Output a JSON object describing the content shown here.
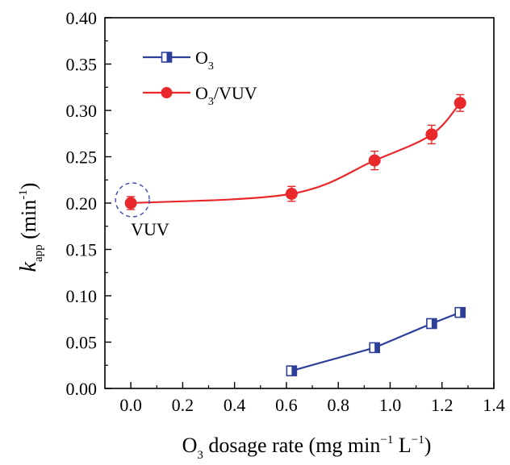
{
  "chart_data": {
    "type": "line",
    "xlabel": {
      "base": "O",
      "sub": "3",
      "rest": " dosage rate (mg min",
      "sup1": "−1",
      "mid": " L",
      "sup2": "−1",
      "end": ")"
    },
    "ylabel": {
      "italic": "k",
      "sub": "app",
      "rest": " (min",
      "sup": "-1",
      "end": ")"
    },
    "xlim": [
      -0.1,
      1.4
    ],
    "ylim": [
      0.0,
      0.4
    ],
    "xticks": [
      "0.0",
      "0.2",
      "0.4",
      "0.6",
      "0.8",
      "1.0",
      "1.2",
      "1.4"
    ],
    "yticks": [
      "0.00",
      "0.05",
      "0.10",
      "0.15",
      "0.20",
      "0.25",
      "0.30",
      "0.35",
      "0.40"
    ],
    "legend_position": "top-left",
    "series": [
      {
        "name": {
          "base": "O",
          "sub": "3",
          "rest": ""
        },
        "color": "#2e3f9a",
        "marker": "half-filled-square",
        "x": [
          0.62,
          0.94,
          1.16,
          1.27
        ],
        "y": [
          0.019,
          0.044,
          0.07,
          0.082
        ],
        "err": [
          0.003,
          0.003,
          0.003,
          0.003
        ]
      },
      {
        "name": {
          "base": "O",
          "sub": "3",
          "rest": "/VUV"
        },
        "color": "#e8282b",
        "marker": "filled-circle",
        "x": [
          0.0,
          0.62,
          0.94,
          1.16,
          1.27
        ],
        "y": [
          0.2,
          0.21,
          0.246,
          0.274,
          0.308
        ],
        "err": [
          0.007,
          0.008,
          0.01,
          0.01,
          0.009
        ]
      }
    ],
    "annotations": [
      {
        "text": "VUV",
        "x": 0.0,
        "y": 0.2
      }
    ]
  }
}
